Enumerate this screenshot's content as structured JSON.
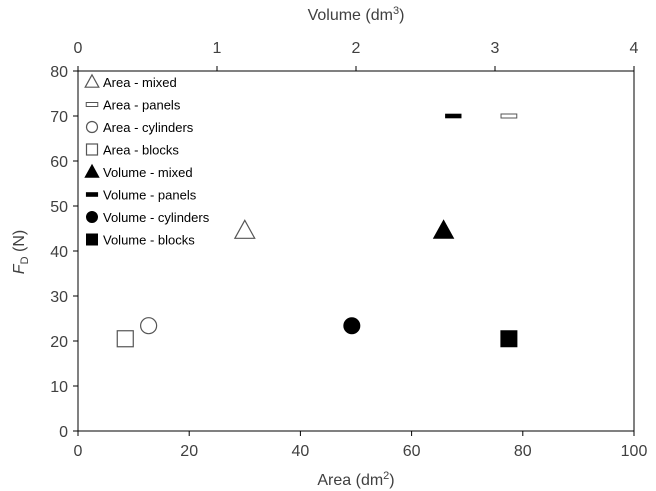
{
  "chart_data": {
    "type": "scatter",
    "xlabel_bottom": {
      "main": "Area (dm",
      "sup": "2",
      "tail": ")"
    },
    "xlabel_top": {
      "main": "Volume (dm",
      "sup": "3",
      "tail": ")"
    },
    "ylabel": {
      "main": "F",
      "sub": "D",
      "tail": " (N)"
    },
    "xlim_bottom": [
      0,
      100
    ],
    "xlim_top": [
      0,
      4
    ],
    "ylim": [
      0,
      80
    ],
    "xticks_bottom": [
      0,
      20,
      40,
      60,
      80,
      100
    ],
    "xticks_top": [
      0,
      1,
      2,
      3,
      4
    ],
    "yticks": [
      0,
      10,
      20,
      30,
      40,
      50,
      60,
      70,
      80
    ],
    "grid": false,
    "legend_position": "top-left",
    "series": [
      {
        "name": "Area - mixed",
        "axis": "bottom",
        "marker": "triangle",
        "filled": false,
        "points": [
          {
            "x": 30,
            "y": 44.5
          }
        ]
      },
      {
        "name": "Area - panels",
        "axis": "bottom",
        "marker": "dash",
        "filled": false,
        "points": [
          {
            "x": 77.5,
            "y": 70
          }
        ]
      },
      {
        "name": "Area - cylinders",
        "axis": "bottom",
        "marker": "circle",
        "filled": false,
        "points": [
          {
            "x": 12.7,
            "y": 23.4
          }
        ]
      },
      {
        "name": "Area - blocks",
        "axis": "bottom",
        "marker": "square",
        "filled": false,
        "points": [
          {
            "x": 8.5,
            "y": 20.5
          }
        ]
      },
      {
        "name": "Volume - mixed",
        "axis": "top",
        "marker": "triangle",
        "filled": true,
        "points": [
          {
            "x": 2.63,
            "y": 44.5
          }
        ]
      },
      {
        "name": "Volume - panels",
        "axis": "top",
        "marker": "dash",
        "filled": true,
        "points": [
          {
            "x": 2.7,
            "y": 70
          }
        ]
      },
      {
        "name": "Volume - cylinders",
        "axis": "top",
        "marker": "circle",
        "filled": true,
        "points": [
          {
            "x": 1.97,
            "y": 23.4
          }
        ]
      },
      {
        "name": "Volume - blocks",
        "axis": "top",
        "marker": "square",
        "filled": true,
        "points": [
          {
            "x": 3.1,
            "y": 20.5
          }
        ]
      }
    ]
  }
}
